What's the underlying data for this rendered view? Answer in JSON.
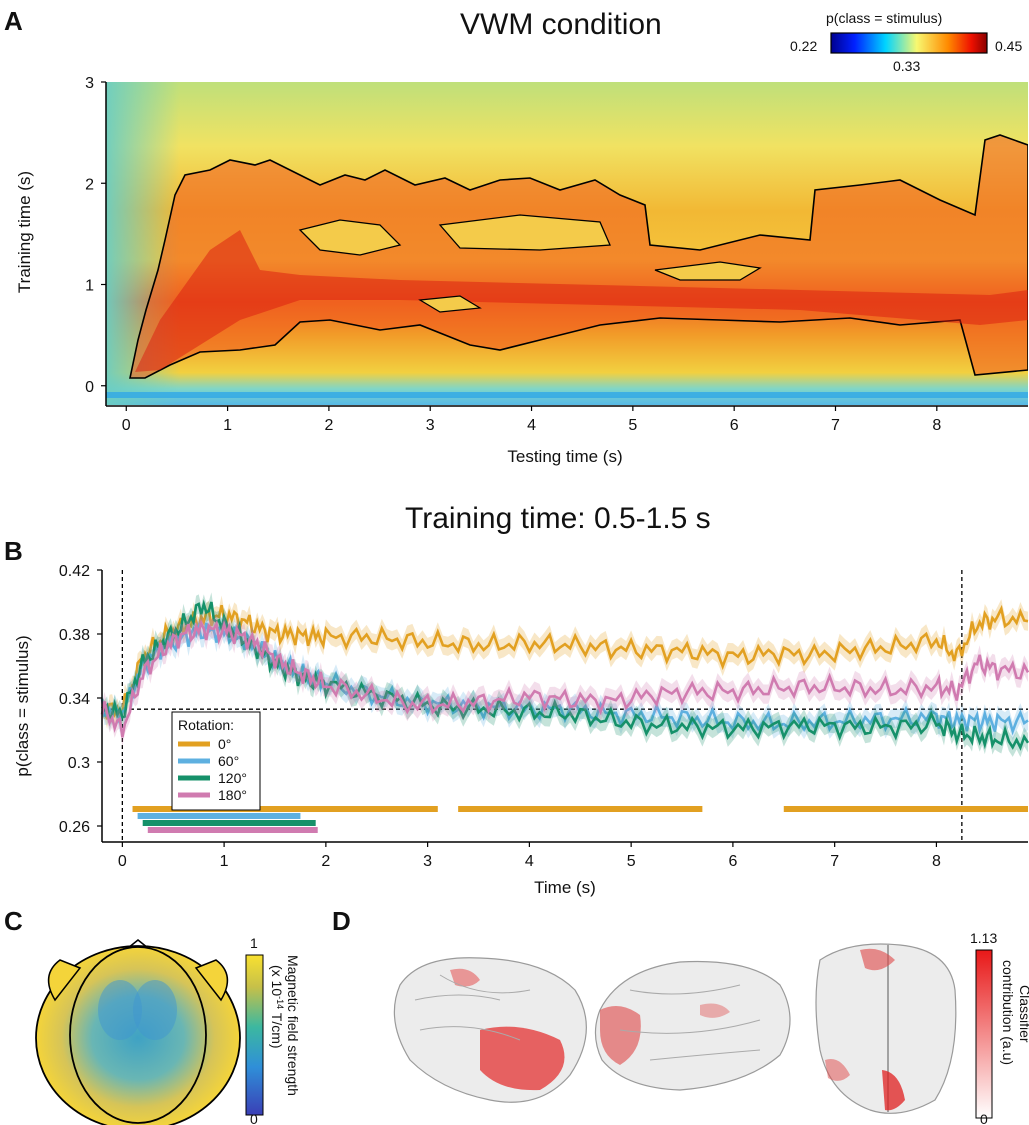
{
  "panels": {
    "a": "A",
    "b": "B",
    "c": "C",
    "d": "D"
  },
  "colorbar_a": {
    "label": "p(class = stimulus)",
    "min": "0.22",
    "mid": "0.33",
    "max": "0.45"
  },
  "colorbar_c": {
    "max": "1",
    "min": "0",
    "label1": "Magnetic field strength",
    "label2": "(x 10",
    "label2_sup": "-14",
    "label2_end": " T/cm)"
  },
  "colorbar_d": {
    "max": "1.13",
    "min": "0",
    "label1": "Classifier",
    "label2": "contribution (a.u)"
  },
  "chart_data": [
    {
      "type": "heatmap",
      "title": "VWM condition",
      "xlabel": "Testing time (s)",
      "ylabel": "Training time (s)",
      "xlim": [
        -0.2,
        8.9
      ],
      "ylim": [
        -0.2,
        3.0
      ],
      "xticks": [
        "0",
        "1",
        "2",
        "3",
        "4",
        "5",
        "6",
        "7",
        "8"
      ],
      "yticks": [
        "0",
        "1",
        "2",
        "3"
      ],
      "color_range": [
        0.22,
        0.45
      ],
      "description_values": "significant cluster outlined in black along training time 0.2-2.0 s"
    },
    {
      "type": "line",
      "title": "Training time: 0.5-1.5 s",
      "xlabel": "Time (s)",
      "ylabel": "p(class = stimulus)",
      "xlim": [
        -0.2,
        8.9
      ],
      "ylim": [
        0.25,
        0.42
      ],
      "xticks": [
        "0",
        "1",
        "2",
        "3",
        "4",
        "5",
        "6",
        "7",
        "8"
      ],
      "yticks": [
        "0.26",
        "0.3",
        "0.34",
        "0.38",
        "0.42"
      ],
      "chance": 0.333,
      "vlines": [
        0,
        8.25
      ],
      "legend_title": "Rotation:",
      "legend_position": "lower-left",
      "x": [
        -0.2,
        0,
        0.2,
        0.4,
        0.6,
        0.8,
        1.0,
        1.2,
        1.4,
        1.6,
        1.8,
        2.0,
        2.4,
        2.8,
        3.2,
        3.6,
        4.0,
        4.4,
        4.8,
        5.2,
        5.6,
        6.0,
        6.4,
        6.8,
        7.2,
        7.6,
        8.0,
        8.2,
        8.4,
        8.6,
        8.9
      ],
      "series": [
        {
          "name": "0°",
          "color": "#e2a021",
          "values": [
            0.333,
            0.332,
            0.365,
            0.378,
            0.385,
            0.39,
            0.392,
            0.388,
            0.382,
            0.38,
            0.379,
            0.378,
            0.378,
            0.376,
            0.374,
            0.373,
            0.374,
            0.373,
            0.371,
            0.37,
            0.369,
            0.366,
            0.368,
            0.367,
            0.37,
            0.372,
            0.376,
            0.366,
            0.386,
            0.39,
            0.388
          ]
        },
        {
          "name": "60°",
          "color": "#5eb0e0",
          "values": [
            0.333,
            0.33,
            0.36,
            0.372,
            0.378,
            0.382,
            0.381,
            0.376,
            0.368,
            0.36,
            0.354,
            0.35,
            0.343,
            0.338,
            0.336,
            0.334,
            0.333,
            0.333,
            0.33,
            0.329,
            0.327,
            0.325,
            0.324,
            0.325,
            0.326,
            0.327,
            0.328,
            0.326,
            0.326,
            0.325,
            0.326
          ]
        },
        {
          "name": "120°",
          "color": "#16916a",
          "values": [
            0.333,
            0.33,
            0.362,
            0.375,
            0.386,
            0.398,
            0.385,
            0.377,
            0.366,
            0.358,
            0.352,
            0.349,
            0.343,
            0.338,
            0.334,
            0.333,
            0.331,
            0.33,
            0.326,
            0.323,
            0.322,
            0.321,
            0.322,
            0.323,
            0.322,
            0.322,
            0.324,
            0.318,
            0.316,
            0.314,
            0.312
          ]
        },
        {
          "name": "180°",
          "color": "#d07bb0",
          "values": [
            0.333,
            0.32,
            0.355,
            0.37,
            0.38,
            0.383,
            0.382,
            0.378,
            0.37,
            0.36,
            0.354,
            0.348,
            0.342,
            0.336,
            0.336,
            0.338,
            0.341,
            0.339,
            0.338,
            0.342,
            0.344,
            0.344,
            0.346,
            0.347,
            0.346,
            0.345,
            0.347,
            0.344,
            0.362,
            0.358,
            0.356
          ]
        }
      ],
      "significance_bars": [
        {
          "series": "0°",
          "spans": [
            [
              0.1,
              3.1
            ],
            [
              3.3,
              5.7
            ],
            [
              6.5,
              8.9
            ]
          ]
        },
        {
          "series": "60°",
          "spans": [
            [
              0.15,
              1.75
            ]
          ]
        },
        {
          "series": "120°",
          "spans": [
            [
              0.2,
              1.9
            ]
          ]
        },
        {
          "series": "180°",
          "spans": [
            [
              0.25,
              1.92
            ]
          ]
        }
      ]
    }
  ]
}
